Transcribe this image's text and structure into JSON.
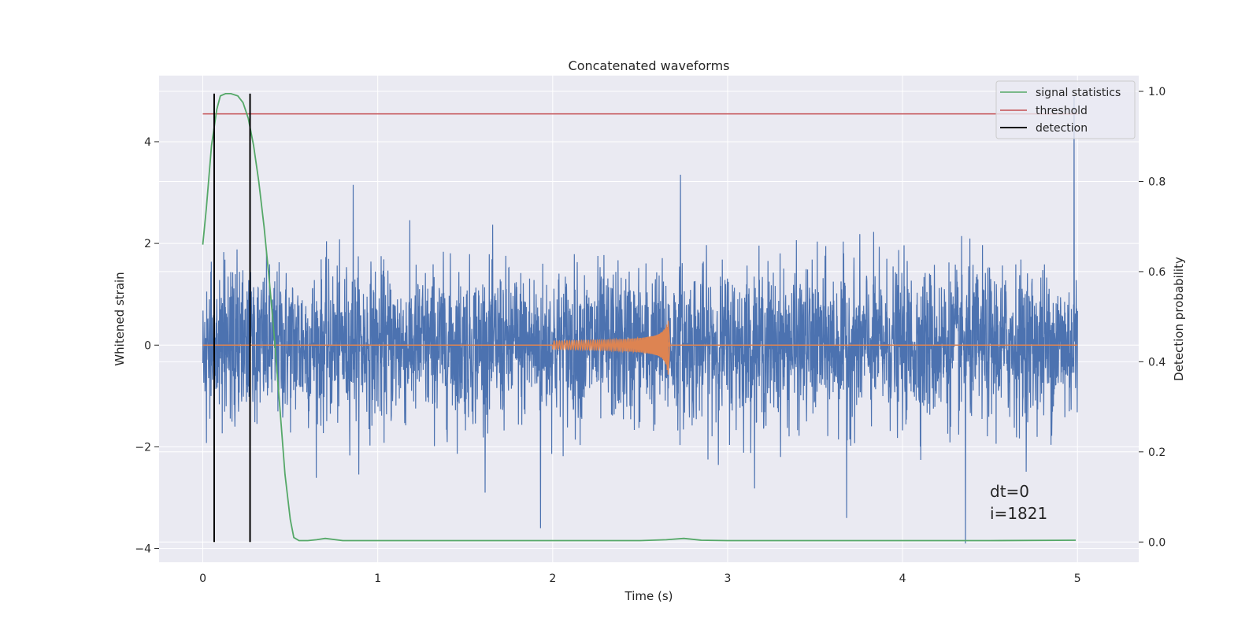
{
  "chart_data": {
    "type": "line",
    "title": "Concatenated waveforms",
    "xlabel": "Time (s)",
    "ylabel": "Whitened strain",
    "ylabel_right": "Detection probability",
    "xlim": [
      -0.25,
      5.35
    ],
    "ylim": [
      -4.27,
      5.3
    ],
    "ylim_right": [
      -0.045,
      1.035
    ],
    "x_ticks": [
      0,
      1,
      2,
      3,
      4,
      5
    ],
    "y_ticks": [
      -4,
      -2,
      0,
      2,
      4
    ],
    "y_ticks_right": [
      0.0,
      0.2,
      0.4,
      0.6,
      0.8,
      1.0
    ],
    "x_tick_labels": [
      "0",
      "1",
      "2",
      "3",
      "4",
      "5"
    ],
    "y_tick_labels": [
      "−4",
      "−2",
      "0",
      "2",
      "4"
    ],
    "y_tick_labels_right": [
      "0.0",
      "0.2",
      "0.4",
      "0.6",
      "0.8",
      "1.0"
    ],
    "grid": true,
    "legend_position": "top-right",
    "colors": {
      "background": "#eaeaf2",
      "strain": "#4c72b0",
      "template": "#dd8452",
      "signal_statistics": "#55a868",
      "threshold": "#c44e52",
      "detection": "#000000",
      "grid": "#ffffff"
    },
    "series": [
      {
        "name": "",
        "axis": "left",
        "description_role": "whitened strain noise",
        "x_range": [
          0,
          5
        ],
        "amplitude_std": 0.75,
        "peaks": [
          {
            "x": 4.98,
            "y": 4.9
          },
          {
            "x": 2.73,
            "y": 3.35
          },
          {
            "x": 0.86,
            "y": 3.15
          },
          {
            "x": 4.36,
            "y": -3.9
          },
          {
            "x": 1.93,
            "y": -3.6
          },
          {
            "x": 3.68,
            "y": -3.4
          }
        ]
      },
      {
        "name": "",
        "axis": "left",
        "description_role": "injected chirp",
        "x_range": [
          2.0,
          2.67
        ],
        "peak": {
          "x": 2.66,
          "y_max": 0.48,
          "y_min": -0.58
        }
      },
      {
        "name": "signal statistics",
        "axis": "right",
        "x": [
          0.0,
          0.02,
          0.05,
          0.08,
          0.1,
          0.13,
          0.16,
          0.2,
          0.23,
          0.26,
          0.29,
          0.32,
          0.35,
          0.38,
          0.41,
          0.44,
          0.47,
          0.5,
          0.52,
          0.55,
          0.6,
          0.65,
          0.7,
          0.8,
          1.0,
          1.5,
          2.0,
          2.5,
          2.65,
          2.75,
          2.85,
          3.0,
          3.5,
          4.0,
          4.5,
          4.99
        ],
        "y": [
          0.66,
          0.74,
          0.88,
          0.96,
          0.99,
          0.995,
          0.995,
          0.99,
          0.975,
          0.94,
          0.88,
          0.8,
          0.7,
          0.58,
          0.45,
          0.3,
          0.15,
          0.05,
          0.01,
          0.003,
          0.003,
          0.005,
          0.008,
          0.003,
          0.003,
          0.003,
          0.003,
          0.003,
          0.005,
          0.008,
          0.004,
          0.003,
          0.003,
          0.003,
          0.003,
          0.004
        ]
      },
      {
        "name": "threshold",
        "axis": "right",
        "x": [
          0,
          5
        ],
        "y": [
          0.95,
          0.95
        ]
      },
      {
        "name": "detection",
        "axis": "right",
        "type": "vlines",
        "x": [
          0.065,
          0.27
        ],
        "y_range": [
          0.0,
          0.995
        ]
      }
    ],
    "legend": [
      "signal statistics",
      "threshold",
      "detection"
    ],
    "annotations": [
      "dt=0",
      "i=1821"
    ]
  }
}
